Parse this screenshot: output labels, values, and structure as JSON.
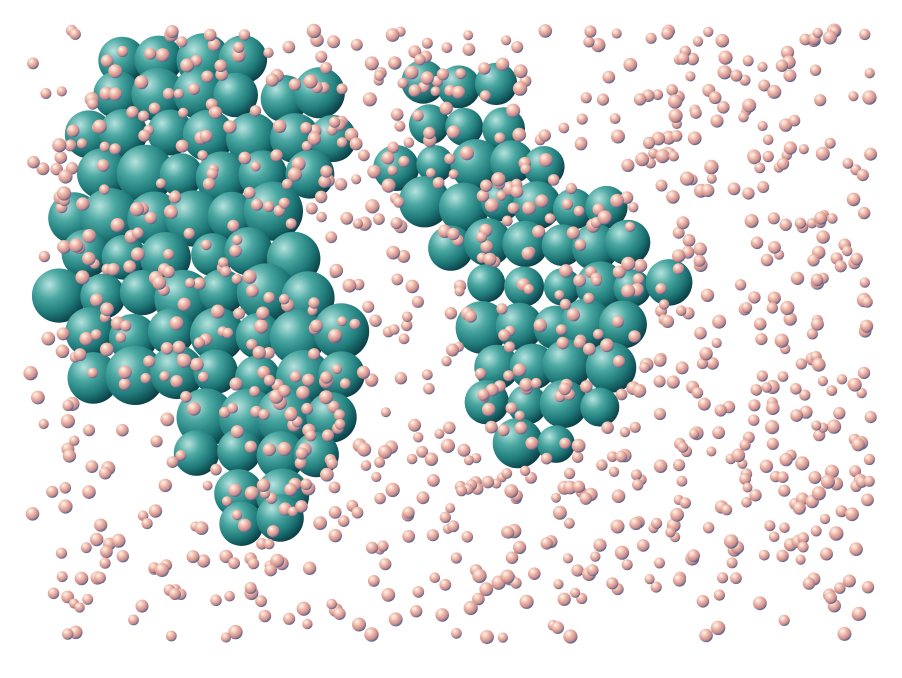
{
  "scene": {
    "description_label": "",
    "colors": {
      "background": "#ffffff",
      "large_sphere_light": "#a9d6d2",
      "large_sphere_mid": "#2f8f8a",
      "large_sphere_dark": "#0f4f55",
      "small_sphere_light": "#fff3ee",
      "small_sphere_mid": "#e7a38f",
      "small_sphere_dark": "#4c5f8f"
    }
  }
}
